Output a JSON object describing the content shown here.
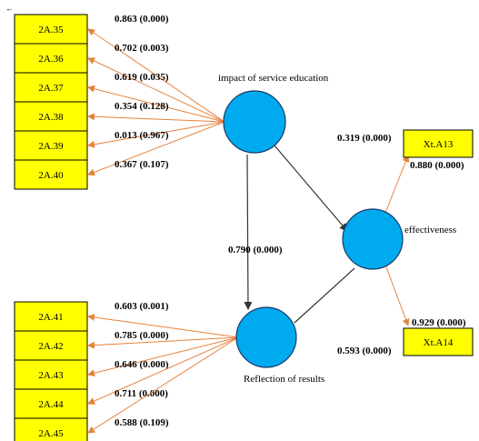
{
  "corner_mark": "←",
  "constructs": {
    "impact": {
      "label": "impact of service education"
    },
    "effectiveness": {
      "label": "effectiveness"
    },
    "reflection": {
      "label": "Reflection of results"
    }
  },
  "indicators": {
    "impact": [
      {
        "name": "2A.35",
        "loading": "0.863 (0.000)"
      },
      {
        "name": "2A.36",
        "loading": "0.702 (0.003)"
      },
      {
        "name": "2A.37",
        "loading": "0.619 (0.035)"
      },
      {
        "name": "2A.38",
        "loading": "0.354 (0.128)"
      },
      {
        "name": "2A.39",
        "loading": "0.013 (0.967)"
      },
      {
        "name": "2A.40",
        "loading": "0.367 (0.107)"
      }
    ],
    "reflection": [
      {
        "name": "2A.41",
        "loading": "0.603 (0.001)"
      },
      {
        "name": "2A.42",
        "loading": "0.785 (0.000)"
      },
      {
        "name": "2A.43",
        "loading": "0.646 (0.000)"
      },
      {
        "name": "2A.44",
        "loading": "0.711 (0.000)"
      },
      {
        "name": "2A.45",
        "loading": "0.588 (0.109)"
      }
    ],
    "effectiveness": [
      {
        "name": "Xt.A13",
        "outer_label": "0.319 (0.000)",
        "inner_label": "0.880 (0.000)"
      },
      {
        "name": "Xt.A14",
        "inner_label": "0.929 (0.000)",
        "outer_label": "0.593 (0.000)"
      }
    ]
  },
  "paths": {
    "impact_to_reflection": "0.790 (0.000)"
  },
  "colors": {
    "indicator_fill": "#ffff00",
    "construct_fill": "#00aaee",
    "loading_arrow": "#e8823a",
    "structural_arrow": "#333333"
  }
}
